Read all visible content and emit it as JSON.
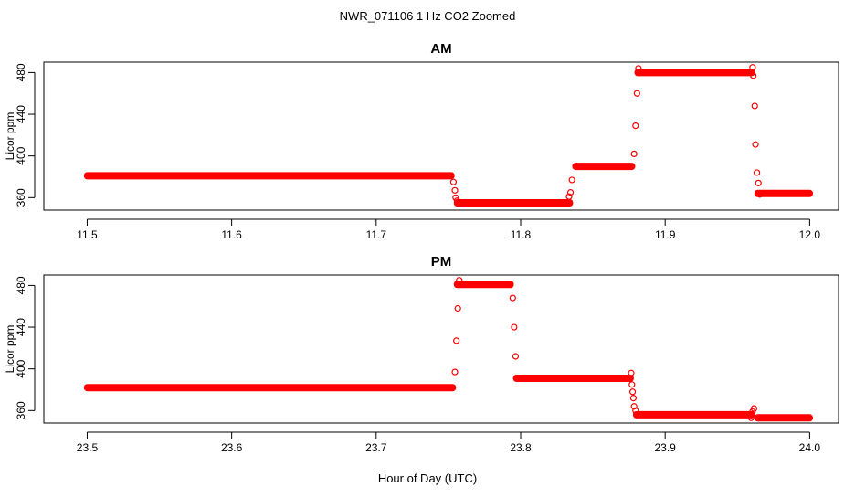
{
  "figure": {
    "title": "NWR_071106  1 Hz CO2 Zoomed",
    "xlabel": "Hour of Day (UTC)"
  },
  "colors": {
    "points": "#ff0000",
    "axes": "#000000",
    "background": "#ffffff"
  },
  "chart_data": [
    {
      "type": "scatter",
      "title": "AM",
      "xlabel": "",
      "ylabel": "Licor ppm",
      "xlim": [
        11.47,
        12.02
      ],
      "ylim": [
        348,
        490
      ],
      "xticks": [
        "11.5",
        "11.6",
        "11.7",
        "11.8",
        "11.9",
        "12.0"
      ],
      "yticks": [
        "360",
        "400",
        "440",
        "480"
      ],
      "grid": false,
      "segments": [
        {
          "x": [
            11.5,
            11.752
          ],
          "y": 381
        },
        {
          "x": [
            11.756,
            11.834
          ],
          "y": 355
        },
        {
          "x": [
            11.838,
            11.877
          ],
          "y": 390
        },
        {
          "x": [
            11.881,
            11.96
          ],
          "y": 480
        },
        {
          "x": [
            11.964,
            12.0
          ],
          "y": 364
        }
      ],
      "transition_points": [
        [
          11.7535,
          375
        ],
        [
          11.7545,
          367
        ],
        [
          11.755,
          360
        ],
        [
          11.756,
          357
        ],
        [
          11.8335,
          361
        ],
        [
          11.8345,
          365
        ],
        [
          11.8355,
          377
        ],
        [
          11.8785,
          402
        ],
        [
          11.8795,
          429
        ],
        [
          11.8805,
          460
        ],
        [
          11.8815,
          484
        ],
        [
          11.9605,
          485
        ],
        [
          11.961,
          477
        ],
        [
          11.962,
          448
        ],
        [
          11.9625,
          411
        ],
        [
          11.9635,
          384
        ],
        [
          11.9645,
          374
        ],
        [
          11.9655,
          363
        ]
      ]
    },
    {
      "type": "scatter",
      "title": "PM",
      "xlabel": "",
      "ylabel": "Licor ppm",
      "xlim": [
        23.47,
        24.02
      ],
      "ylim": [
        348,
        490
      ],
      "xticks": [
        "23.5",
        "23.6",
        "23.7",
        "23.8",
        "23.9",
        "24.0"
      ],
      "yticks": [
        "360",
        "400",
        "440",
        "480"
      ],
      "grid": false,
      "segments": [
        {
          "x": [
            23.5,
            23.753
          ],
          "y": 382
        },
        {
          "x": [
            23.756,
            23.793
          ],
          "y": 481
        },
        {
          "x": [
            23.797,
            23.876
          ],
          "y": 391
        },
        {
          "x": [
            23.88,
            23.96
          ],
          "y": 356
        },
        {
          "x": [
            23.964,
            24.0
          ],
          "y": 353
        }
      ],
      "transition_points": [
        [
          23.7545,
          397
        ],
        [
          23.7555,
          427
        ],
        [
          23.7565,
          458
        ],
        [
          23.7575,
          485
        ],
        [
          23.7945,
          468
        ],
        [
          23.7955,
          440
        ],
        [
          23.7965,
          412
        ],
        [
          23.8765,
          396
        ],
        [
          23.877,
          385
        ],
        [
          23.8775,
          378
        ],
        [
          23.878,
          372
        ],
        [
          23.8785,
          364
        ],
        [
          23.8795,
          360
        ],
        [
          23.9595,
          353
        ],
        [
          23.9605,
          359
        ],
        [
          23.9615,
          362
        ]
      ]
    }
  ]
}
